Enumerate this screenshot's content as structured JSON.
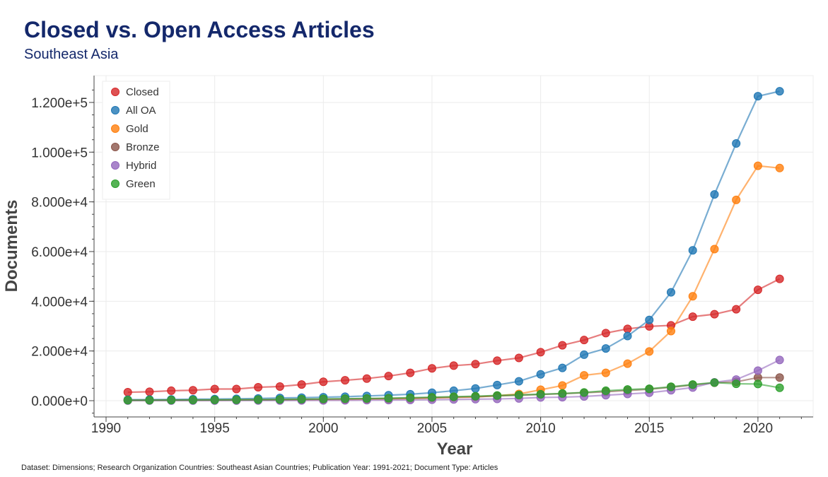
{
  "header": {
    "title": "Closed vs. Open Access Articles",
    "subtitle": "Southeast Asia"
  },
  "footer": "Dataset: Dimensions; Research Organization Countries: Southeast Asian Countries; Publication Year: 1991-2021; Document Type: Articles",
  "chart_data": {
    "type": "line",
    "xlabel": "Year",
    "ylabel": "Documents",
    "xlim": [
      1989.5,
      2022.5
    ],
    "ylim": [
      -7000,
      130000
    ],
    "x_ticks": [
      "1990",
      "1995",
      "2000",
      "2005",
      "2010",
      "2015",
      "2020"
    ],
    "y_ticks": [
      "0.000e+0",
      "2.000e+4",
      "4.000e+4",
      "6.000e+4",
      "8.000e+4",
      "1.000e+5",
      "1.200e+5"
    ],
    "y_tick_values": [
      0,
      20000,
      40000,
      60000,
      80000,
      100000,
      120000
    ],
    "grid": true,
    "legend_position": "top-left",
    "x": [
      1991,
      1992,
      1993,
      1994,
      1995,
      1996,
      1997,
      1998,
      1999,
      2000,
      2001,
      2002,
      2003,
      2004,
      2005,
      2006,
      2007,
      2008,
      2009,
      2010,
      2011,
      2012,
      2013,
      2014,
      2015,
      2016,
      2017,
      2018,
      2019,
      2020,
      2021
    ],
    "series": [
      {
        "name": "Closed",
        "color": "#d62728",
        "values": [
          3400,
          3600,
          4000,
          4200,
          4700,
          4700,
          5400,
          5700,
          6500,
          7600,
          8200,
          8900,
          9900,
          11200,
          13000,
          14100,
          14700,
          16100,
          17200,
          19500,
          22300,
          24400,
          27200,
          28900,
          29900,
          30300,
          33800,
          34800,
          36800,
          44600,
          49000
        ]
      },
      {
        "name": "All OA",
        "color": "#1f77b4",
        "values": [
          400,
          450,
          500,
          600,
          650,
          750,
          900,
          1100,
          1200,
          1400,
          1600,
          1900,
          2200,
          2600,
          3200,
          4000,
          4900,
          6300,
          7800,
          10600,
          13200,
          18500,
          21000,
          26000,
          32500,
          43600,
          60500,
          83000,
          103500,
          122500,
          124500
        ]
      },
      {
        "name": "Gold",
        "color": "#ff7f0e",
        "values": [
          100,
          120,
          150,
          180,
          200,
          250,
          300,
          350,
          400,
          450,
          500,
          600,
          700,
          850,
          1100,
          1300,
          1500,
          2000,
          2700,
          4400,
          6100,
          10200,
          11200,
          14900,
          19800,
          28000,
          42000,
          61000,
          80800,
          94500,
          93600
        ]
      },
      {
        "name": "Bronze",
        "color": "#8c564b",
        "values": [
          150,
          170,
          200,
          230,
          260,
          300,
          350,
          400,
          500,
          600,
          700,
          800,
          900,
          1000,
          1200,
          1400,
          1600,
          1900,
          2200,
          2500,
          2800,
          3200,
          3600,
          4100,
          4600,
          5400,
          6300,
          7200,
          7600,
          9300,
          9300
        ]
      },
      {
        "name": "Hybrid",
        "color": "#9467bd",
        "values": [
          20,
          25,
          30,
          35,
          40,
          50,
          60,
          80,
          100,
          120,
          150,
          200,
          250,
          300,
          400,
          500,
          600,
          700,
          900,
          1300,
          1400,
          1700,
          2200,
          2700,
          3200,
          4200,
          5300,
          7400,
          8500,
          12100,
          16400
        ]
      },
      {
        "name": "Green",
        "color": "#2ca02c",
        "values": [
          200,
          220,
          250,
          280,
          320,
          360,
          420,
          500,
          600,
          700,
          800,
          900,
          1000,
          1200,
          1400,
          1600,
          1800,
          2100,
          2300,
          2600,
          2900,
          3300,
          4000,
          4500,
          4800,
          5600,
          6500,
          7300,
          6800,
          6700,
          5200
        ]
      }
    ]
  }
}
